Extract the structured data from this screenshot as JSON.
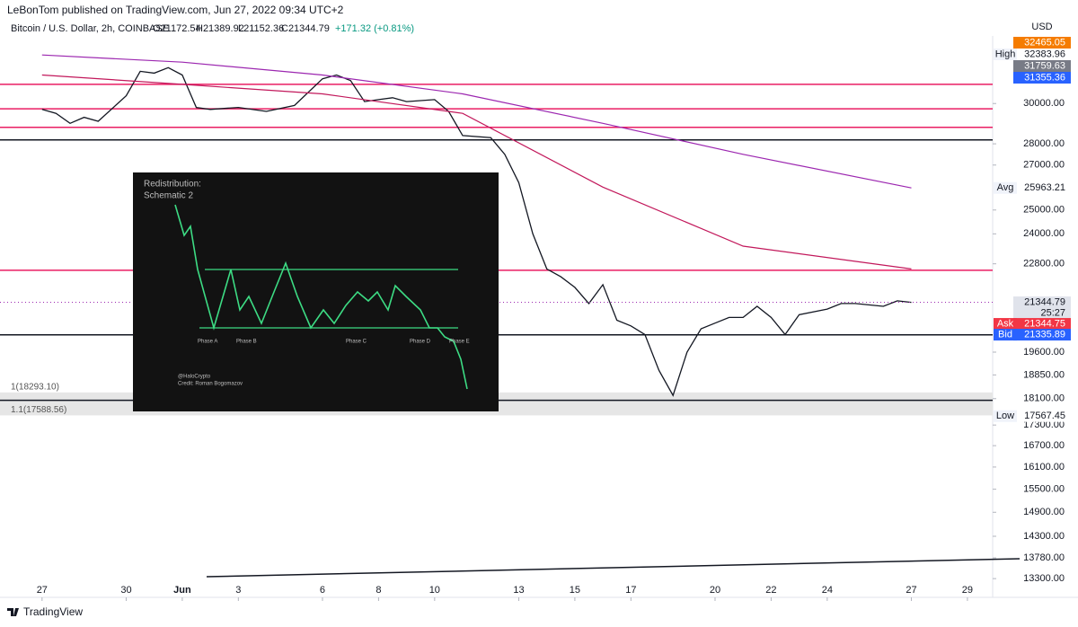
{
  "header": {
    "publisher": "LeBonTom published on TradingView.com, Jun 27, 2022 09:34 UTC+2"
  },
  "chart_data": {
    "type": "line",
    "title": "Bitcoin / U.S. Dollar, 2h, COINBASE",
    "ohlc": {
      "open": "O21172.54",
      "high": "H21389.92",
      "low": "L21152.36",
      "close": "C21344.79",
      "change": "+171.32 (+0.81%)"
    },
    "currency": "USD",
    "log_scale": true,
    "grid": false,
    "xlim": [
      -1.5,
      33.9
    ],
    "ylim": [
      12880,
      33680
    ],
    "xticks": [
      {
        "value": 0,
        "label": "27"
      },
      {
        "value": 3,
        "label": "30"
      },
      {
        "value": 5,
        "label": "Jun"
      },
      {
        "value": 7,
        "label": "3"
      },
      {
        "value": 10,
        "label": "6"
      },
      {
        "value": 12,
        "label": "8"
      },
      {
        "value": 14,
        "label": "10"
      },
      {
        "value": 17,
        "label": "13"
      },
      {
        "value": 19,
        "label": "15"
      },
      {
        "value": 21,
        "label": "17"
      },
      {
        "value": 24,
        "label": "20"
      },
      {
        "value": 26,
        "label": "22"
      },
      {
        "value": 28,
        "label": "24"
      },
      {
        "value": 31,
        "label": "27"
      },
      {
        "value": 33,
        "label": "29"
      }
    ],
    "yticks": [
      {
        "value": 30000,
        "label": "30000.00"
      },
      {
        "value": 28000,
        "label": "28000.00"
      },
      {
        "value": 27000,
        "label": "27000.00"
      },
      {
        "value": 25000,
        "label": "25000.00"
      },
      {
        "value": 24000,
        "label": "24000.00"
      },
      {
        "value": 22800,
        "label": "22800.00"
      },
      {
        "value": 19600,
        "label": "19600.00"
      },
      {
        "value": 18850,
        "label": "18850.00"
      },
      {
        "value": 18100,
        "label": "18100.00"
      },
      {
        "value": 17300,
        "label": "17300.00"
      },
      {
        "value": 16700,
        "label": "16700.00"
      },
      {
        "value": 16100,
        "label": "16100.00"
      },
      {
        "value": 15500,
        "label": "15500.00"
      },
      {
        "value": 14900,
        "label": "14900.00"
      },
      {
        "value": 14300,
        "label": "14300.00"
      },
      {
        "value": 13780,
        "label": "13780.00"
      },
      {
        "value": 13300,
        "label": "13300.00"
      }
    ],
    "series": [
      {
        "color": "#131722",
        "x": [
          0,
          0.5,
          1,
          1.5,
          2,
          3,
          3.5,
          4,
          4.5,
          5,
          5.5,
          6,
          7,
          8,
          9,
          10,
          10.5,
          11,
          11.5,
          12,
          12.5,
          13,
          14,
          14.5,
          15,
          16,
          16.5,
          17,
          17.5,
          18,
          18.5,
          19,
          19.5,
          20,
          20.5,
          21,
          21.5,
          22,
          22.5,
          23,
          23.5,
          24,
          24.5,
          25,
          25.5,
          26,
          26.5,
          27,
          28,
          28.5,
          29,
          30,
          30.5,
          31
        ],
        "values": [
          29700,
          29500,
          29000,
          29300,
          29100,
          30400,
          31700,
          31600,
          31900,
          31500,
          29800,
          29700,
          29800,
          29600,
          29900,
          31300,
          31500,
          31200,
          30100,
          30200,
          30300,
          30100,
          30200,
          29600,
          28400,
          28300,
          27500,
          26200,
          24000,
          22600,
          22300,
          21900,
          21300,
          22000,
          20700,
          20500,
          20200,
          19000,
          18200,
          19600,
          20400,
          20600,
          20800,
          20800,
          21200,
          20800,
          20200,
          20900,
          21100,
          21300,
          21300,
          21200,
          21400,
          21344.79
        ]
      },
      {
        "color": "#9c27b0",
        "x": [
          0,
          5,
          10,
          15,
          20,
          25,
          31
        ],
        "values": [
          32600,
          32200,
          31500,
          30500,
          29000,
          27500,
          25963.21
        ]
      },
      {
        "color": "#c2185b",
        "x": [
          0,
          5,
          10,
          15,
          20,
          25,
          31
        ],
        "values": [
          31500,
          31000,
          30500,
          29500,
          26000,
          23500,
          22600
        ]
      }
    ],
    "horizontal_lines": [
      {
        "value": 31000,
        "color": "#e91e63"
      },
      {
        "value": 29730,
        "color": "#e91e63"
      },
      {
        "value": 28800,
        "color": "#e91e63"
      },
      {
        "value": 22550,
        "color": "#e91e63"
      },
      {
        "value": 28190,
        "color": "#131722"
      },
      {
        "value": 20190,
        "color": "#131722"
      },
      {
        "value": 18050,
        "color": "#131722"
      }
    ],
    "fib_labels": [
      {
        "label": "1(18293.10)",
        "value": 18293.1
      },
      {
        "label": "1.1(17588.56)",
        "value": 17588.56
      }
    ],
    "price_labels": [
      {
        "value": 32465.05,
        "color": "#f57c00"
      },
      {
        "name": "High",
        "value": 32383.96,
        "color": "#ffffff"
      },
      {
        "value": 31759.63,
        "color": "#787b86"
      },
      {
        "value": 31355.36,
        "color": "#2962ff"
      },
      {
        "name": "Avg",
        "value": 25963.21,
        "color": "#ffffff"
      },
      {
        "value": 21344.79,
        "color": "#e0e3eb",
        "countdown": "25:27"
      },
      {
        "name": "Ask",
        "value": 21344.75,
        "color": "#f23645"
      },
      {
        "name": "Bid",
        "value": 21335.89,
        "color": "#2962ff"
      },
      {
        "name": "Low",
        "value": 17567.45,
        "color": "#ffffff"
      }
    ]
  },
  "inset": {
    "title": "Redistribution:",
    "subtitle": "Schematic 2",
    "phases": [
      "Phase A",
      "Phase B",
      "Phase C",
      "Phase D",
      "Phase E"
    ],
    "handle": "@HaloCrypto",
    "credit": "Credit: Roman Bogomazov"
  },
  "footer": {
    "brand": "TradingView"
  }
}
